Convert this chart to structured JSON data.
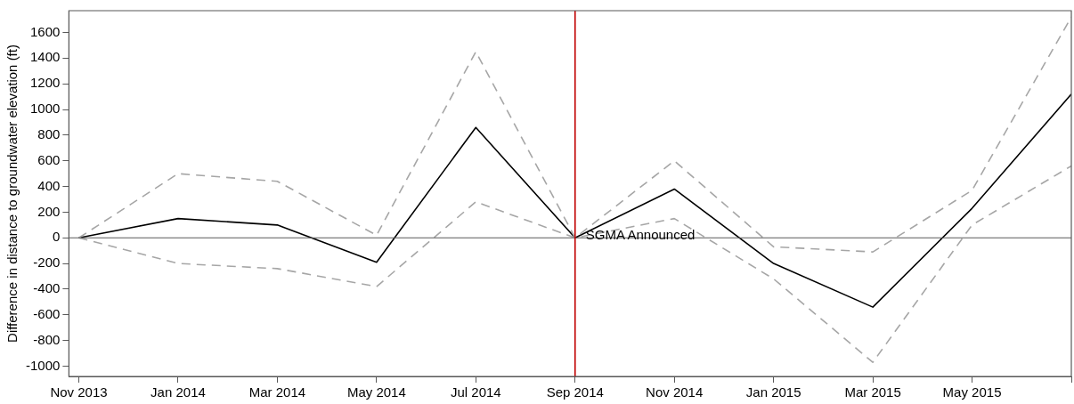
{
  "chart_data": {
    "type": "line",
    "ylabel": "Difference in distance to groundwater elevation (ft)",
    "categories": [
      "Nov 2013",
      "Jan 2014",
      "Mar 2014",
      "May 2014",
      "Jul 2014",
      "Sep 2014",
      "Nov 2014",
      "Jan 2015",
      "Mar 2015",
      "May 2015",
      null
    ],
    "series": [
      {
        "color": "#a6a6a6",
        "line_style": "dashed",
        "values": [
          0,
          500,
          440,
          20,
          1450,
          0,
          600,
          -70,
          -110,
          370,
          1720
        ]
      },
      {
        "color": "#a6a6a6",
        "line_style": "dashed",
        "values": [
          0,
          -200,
          -240,
          -380,
          280,
          0,
          150,
          -320,
          -970,
          100,
          560
        ]
      },
      {
        "color": "#000000",
        "line_style": "solid",
        "values": [
          0,
          150,
          100,
          -190,
          860,
          0,
          380,
          -200,
          -540,
          230,
          1120
        ]
      }
    ],
    "ylim": [
      -1080,
      1770
    ],
    "yticks": [
      -1000,
      -800,
      -600,
      -400,
      -200,
      0,
      200,
      400,
      600,
      800,
      1000,
      1200,
      1400,
      1600
    ],
    "ref_lines": [
      {
        "axis": "y",
        "value": 0,
        "color": "#595959"
      },
      {
        "axis": "x",
        "value": "Sep 2014",
        "label": "SGMA Announced",
        "color": "#c00000"
      }
    ],
    "grid": false,
    "legend": false,
    "marker": "none"
  }
}
